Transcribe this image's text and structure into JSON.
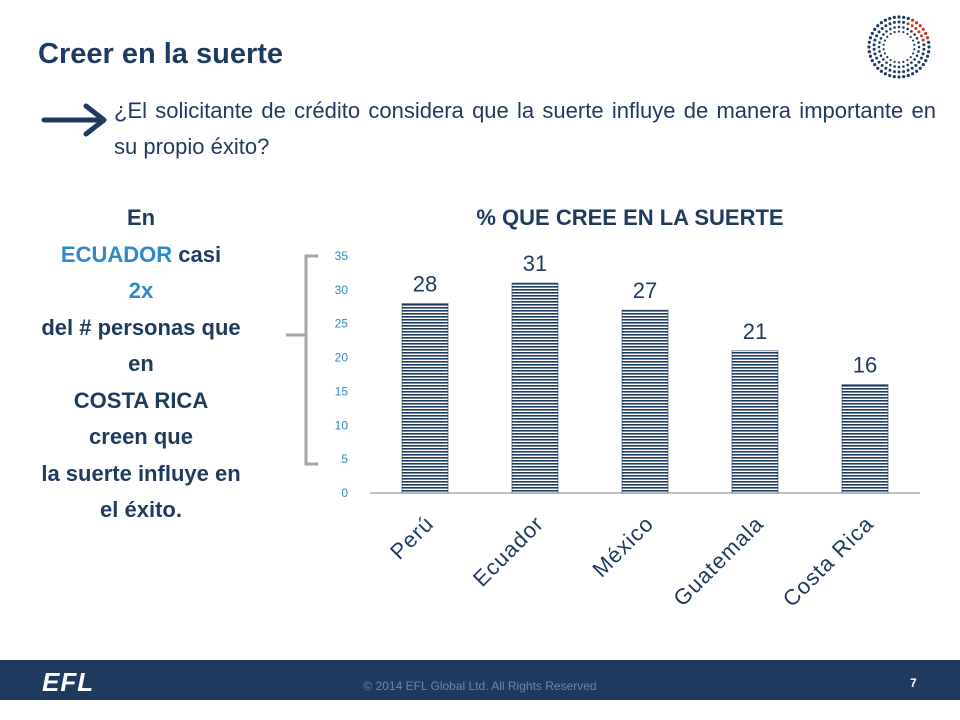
{
  "header": {
    "title": "Creer en la suerte",
    "question": "¿El solicitante de crédito considera que la suerte influye de manera importante en su propio éxito?"
  },
  "callout": {
    "line1": "En",
    "line2_highlight": "ECUADOR",
    "line2_rest": " casi",
    "line3": "2x",
    "line4": "del # personas que",
    "line5": "en",
    "line6": "COSTA RICA",
    "line7": "creen que",
    "line8": "la suerte influye en",
    "line9": "el éxito."
  },
  "colors": {
    "navy": "#1f3a5f",
    "accent_blue": "#2e8ac6",
    "bar_stripe": "#1f3a5f",
    "bracket_gray": "#a6a6a6"
  },
  "chart_data": {
    "type": "bar",
    "title": "% QUE CREE EN LA SUERTE",
    "categories": [
      "Perú",
      "Ecuador",
      "México",
      "Guatemala",
      "Costa Rica"
    ],
    "values": [
      28,
      31,
      27,
      21,
      16
    ],
    "data_labels": [
      "28",
      "31",
      "27",
      "21",
      "16"
    ],
    "ylim": [
      0,
      35
    ],
    "yticks": [
      0,
      5,
      10,
      15,
      20,
      25,
      30,
      35
    ],
    "grid": false,
    "legend": "none"
  },
  "footer": {
    "logo": "EFL",
    "copyright": "© 2014 EFL Global Ltd. All Rights Reserved",
    "page": "7"
  }
}
